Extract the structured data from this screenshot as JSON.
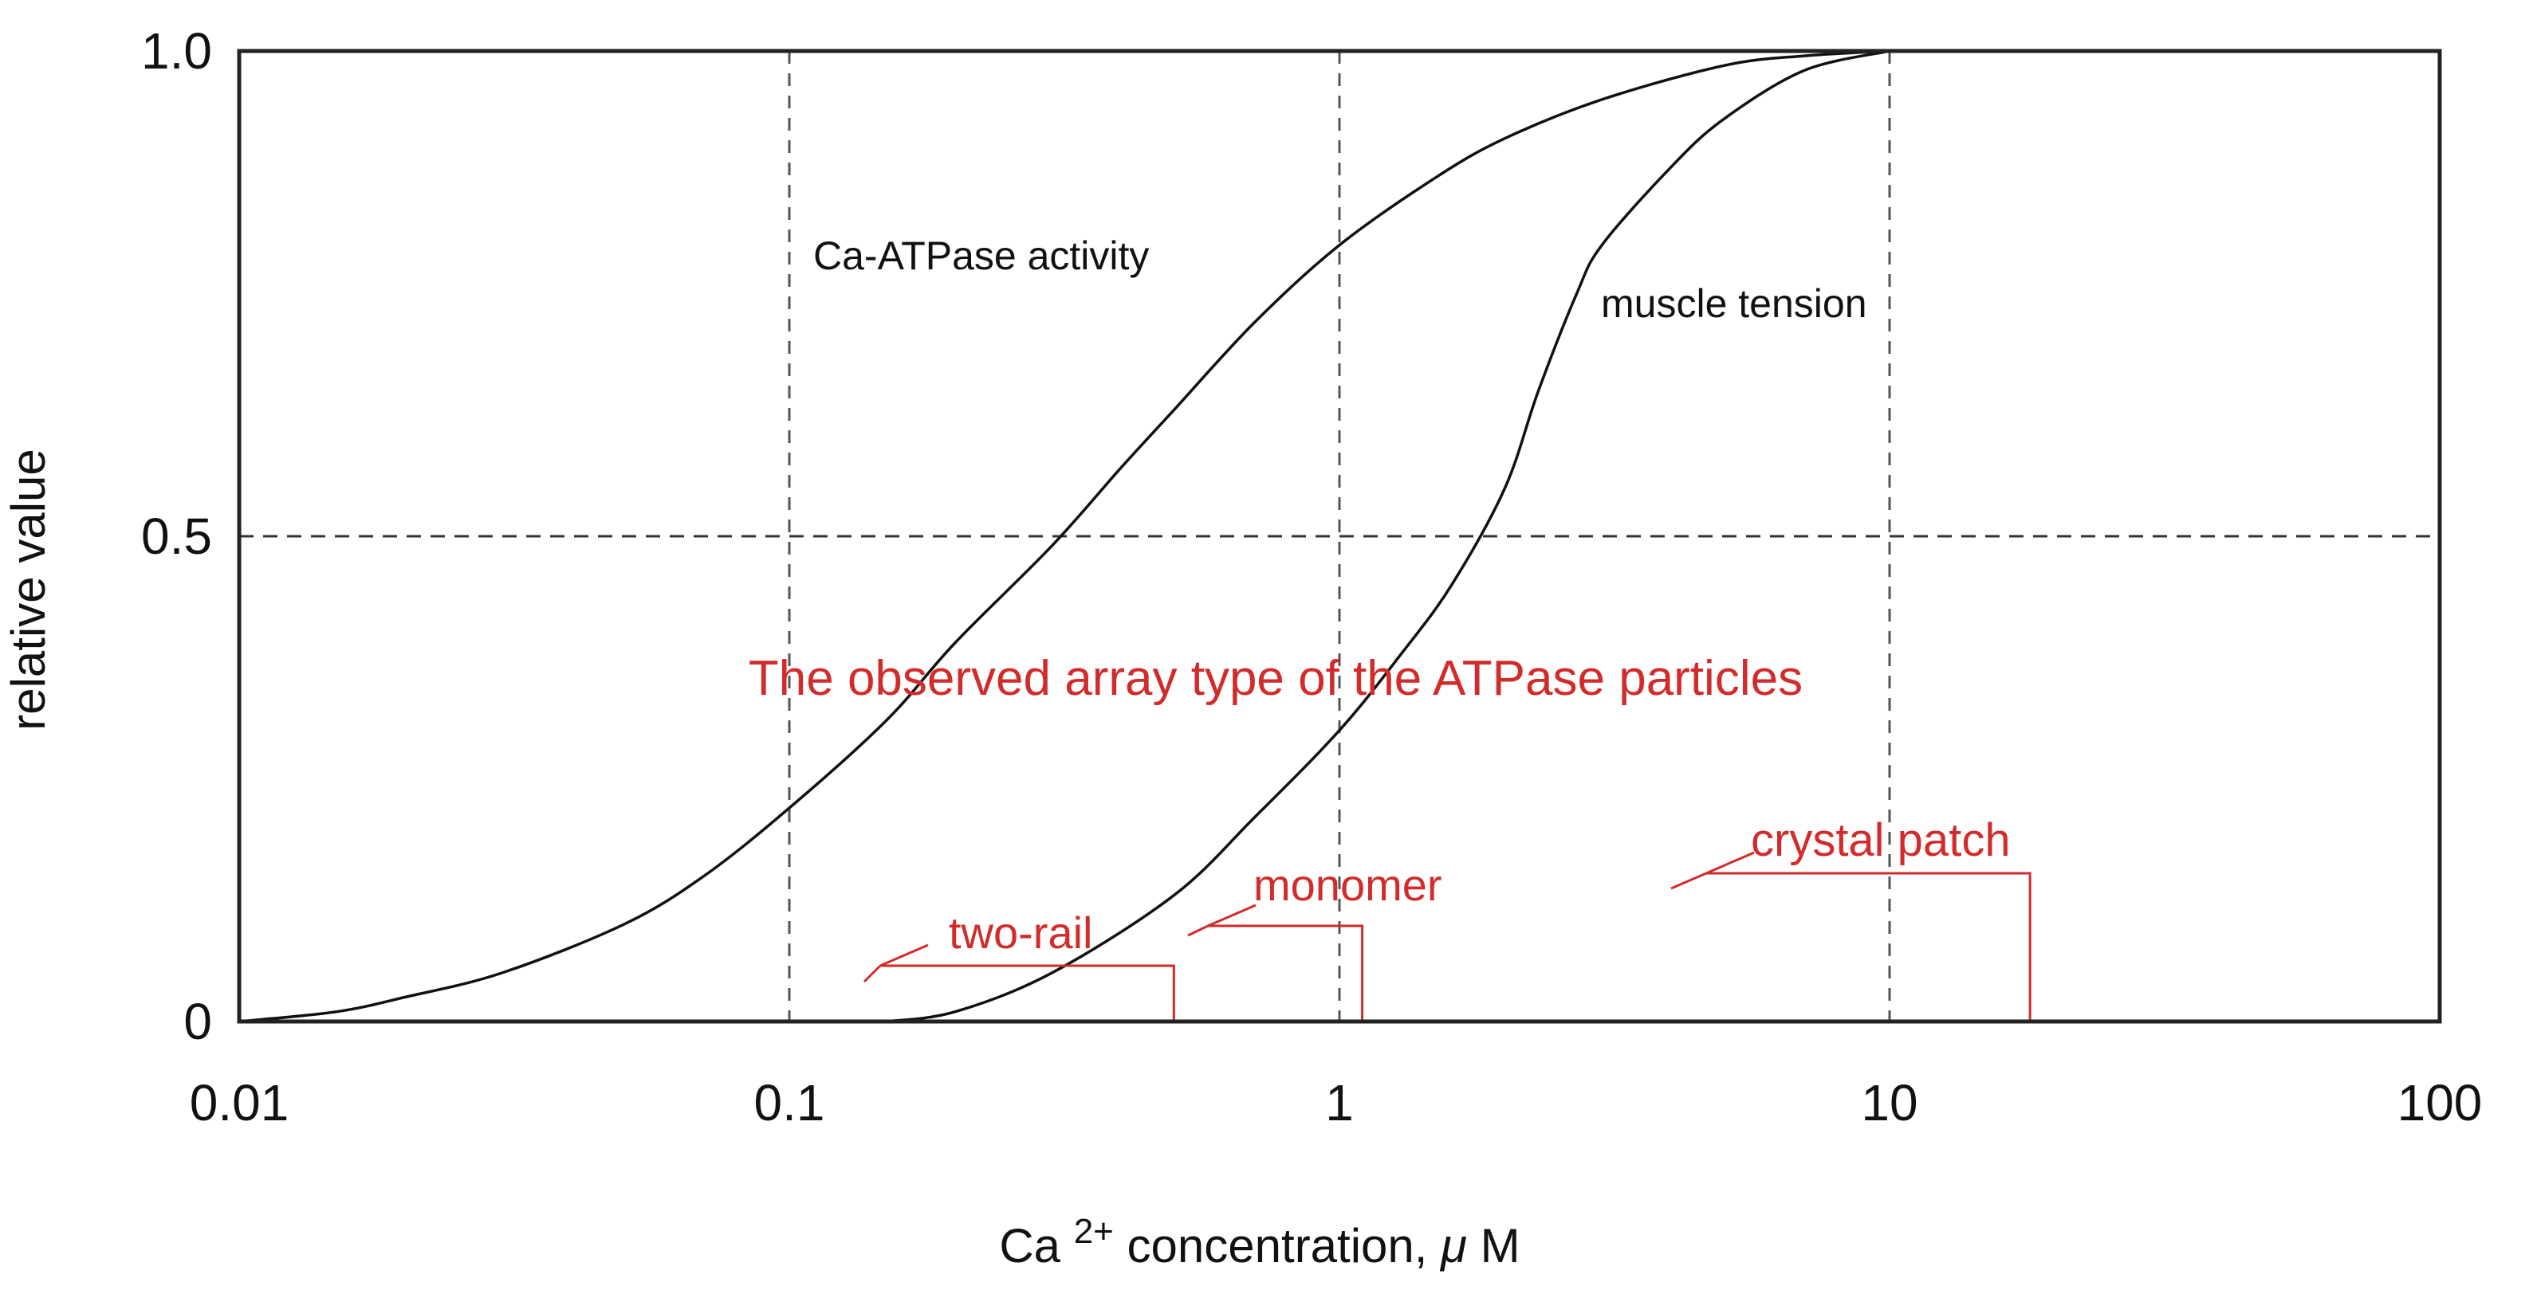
{
  "chart_data": {
    "type": "line",
    "xscale": "log",
    "xlim": [
      0.01,
      100
    ],
    "ylim": [
      0,
      1.0
    ],
    "x_ticks": [
      0.01,
      0.1,
      1,
      10,
      100
    ],
    "x_tick_labels": [
      "0.01",
      "0.1",
      "1",
      "10",
      "100"
    ],
    "y_ticks": [
      0,
      0.5,
      1.0
    ],
    "y_tick_labels": [
      "0",
      "0.5",
      "1.0"
    ],
    "xlabel": {
      "prefix": "Ca",
      "superscript": "2+",
      "middle": " concentration, ",
      "mu": "μ",
      "suffix": "M"
    },
    "ylabel": "relative value",
    "vertical_reference_lines": [
      0.1,
      1,
      10
    ],
    "horizontal_reference_lines": [
      0.5
    ],
    "series": [
      {
        "name": "Ca-ATPase activity",
        "label": "Ca-ATPase activity",
        "color": "#111111",
        "x": [
          0.01,
          0.015,
          0.02,
          0.03,
          0.05,
          0.07,
          0.1,
          0.15,
          0.2,
          0.3,
          0.4,
          0.5,
          0.7,
          1.0,
          1.5,
          2,
          3,
          5,
          7,
          10
        ],
        "y": [
          0.0,
          0.01,
          0.025,
          0.05,
          0.1,
          0.15,
          0.22,
          0.31,
          0.39,
          0.49,
          0.57,
          0.63,
          0.72,
          0.8,
          0.87,
          0.91,
          0.95,
          0.985,
          0.995,
          1.0
        ]
      },
      {
        "name": "muscle tension",
        "label": "muscle tension",
        "color": "#111111",
        "x": [
          0.15,
          0.2,
          0.3,
          0.5,
          0.7,
          1.0,
          1.3,
          1.6,
          2.0,
          2.3,
          2.7,
          3.0,
          4,
          5,
          7,
          10
        ],
        "y": [
          0.0,
          0.01,
          0.05,
          0.13,
          0.21,
          0.3,
          0.38,
          0.45,
          0.55,
          0.65,
          0.75,
          0.8,
          0.88,
          0.93,
          0.98,
          1.0
        ]
      }
    ],
    "annotation_title": "The observed array type of the ATPase particles",
    "array_markers": [
      {
        "label": "two-rail",
        "x": 0.5
      },
      {
        "label": "monomer",
        "x": 1.1
      },
      {
        "label": "crystal patch",
        "x": 18
      }
    ],
    "annotation_color": "#d22b2b"
  }
}
